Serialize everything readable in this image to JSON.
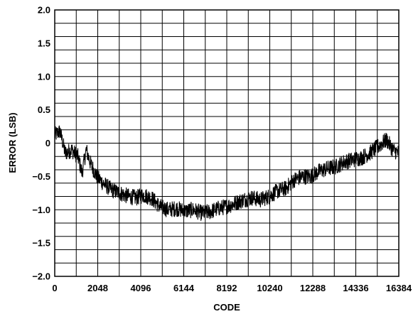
{
  "chart_data": {
    "type": "line",
    "title": "",
    "xlabel": "CODE",
    "ylabel": "ERROR (LSB)",
    "xlim": [
      0,
      16384
    ],
    "ylim": [
      -2.0,
      2.0
    ],
    "x_ticks": [
      0,
      2048,
      4096,
      6144,
      8192,
      10240,
      12288,
      14336,
      16384
    ],
    "x_tick_labels": [
      "0",
      "2048",
      "4096",
      "6144",
      "8192",
      "10240",
      "12288",
      "14336",
      "16384"
    ],
    "y_ticks": [
      2.0,
      1.5,
      1.0,
      0.5,
      0,
      -0.5,
      -1.0,
      -1.5,
      -2.0
    ],
    "y_tick_labels": [
      "2.0",
      "1.5",
      "1.0",
      "0.5",
      "0",
      "−0.5",
      "−1.0",
      "−1.5",
      "−2.0"
    ],
    "grid": {
      "vertical_lines": 16,
      "horizontal_lines": 20
    },
    "legend": "none",
    "series": [
      {
        "x": [
          0,
          250,
          500,
          800,
          1100,
          1300,
          1500,
          1700,
          2000,
          2300,
          2700,
          3100,
          3500,
          3900,
          4200,
          4600,
          5000,
          5400,
          5800,
          6200,
          6600,
          7000,
          7400,
          7800,
          8200,
          8600,
          9000,
          9400,
          9800,
          10200,
          10600,
          11000,
          11400,
          11800,
          12200,
          12600,
          13000,
          13400,
          13800,
          14200,
          14600,
          15000,
          15400,
          15800,
          16100,
          16384
        ],
        "y": [
          0.12,
          0.18,
          -0.15,
          -0.1,
          -0.2,
          -0.45,
          -0.1,
          -0.3,
          -0.5,
          -0.6,
          -0.7,
          -0.75,
          -0.8,
          -0.82,
          -0.78,
          -0.82,
          -0.95,
          -1.0,
          -0.98,
          -1.02,
          -1.0,
          -1.05,
          -1.03,
          -0.98,
          -0.95,
          -0.9,
          -0.85,
          -0.82,
          -0.85,
          -0.8,
          -0.72,
          -0.68,
          -0.55,
          -0.5,
          -0.5,
          -0.42,
          -0.38,
          -0.35,
          -0.28,
          -0.25,
          -0.22,
          -0.15,
          -0.05,
          0.05,
          -0.1,
          -0.15
        ],
        "noise_band": 0.12
      }
    ]
  }
}
